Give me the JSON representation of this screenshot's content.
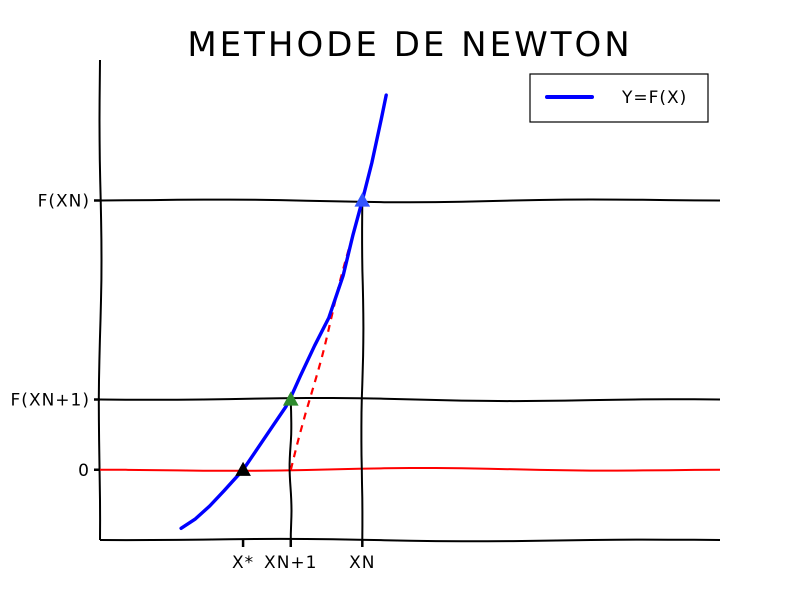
{
  "chart_data": {
    "type": "line",
    "title": "METHODE DE NEWTON",
    "xlabel": "",
    "ylabel": "",
    "xlim": [
      -0.3,
      1.0
    ],
    "ylim": [
      -0.6,
      3.5
    ],
    "grid": false,
    "legend": {
      "position": "top-right",
      "entries": [
        "Y=F(X)"
      ]
    },
    "x_ticks": [
      {
        "value": 0.0,
        "label": "X*"
      },
      {
        "value": 0.1,
        "label": "XN+1"
      },
      {
        "value": 0.25,
        "label": "XN"
      }
    ],
    "y_ticks": [
      {
        "value": 0.0,
        "label": "0"
      },
      {
        "value": 0.6,
        "label": "F(XN+1)"
      },
      {
        "value": 2.3,
        "label": "F(XN)"
      }
    ],
    "series": [
      {
        "name": "Y=F(X)",
        "color": "#0000ff",
        "style": "solid",
        "x": [
          -0.13,
          -0.1,
          -0.07,
          -0.04,
          -0.02,
          0.0,
          0.03,
          0.06,
          0.09,
          0.1,
          0.12,
          0.15,
          0.18,
          0.21,
          0.23,
          0.25,
          0.27,
          0.29,
          0.3
        ],
        "y": [
          -0.5,
          -0.42,
          -0.31,
          -0.18,
          -0.09,
          0.0,
          0.18,
          0.36,
          0.54,
          0.62,
          0.8,
          1.06,
          1.3,
          1.66,
          2.0,
          2.3,
          2.62,
          3.0,
          3.2
        ]
      }
    ],
    "reference_lines": [
      {
        "kind": "horizontal",
        "y": 0.0,
        "color": "#ff0000",
        "style": "solid"
      },
      {
        "kind": "horizontal",
        "y": 0.6,
        "color": "#000000",
        "style": "solid"
      },
      {
        "kind": "horizontal",
        "y": 2.3,
        "color": "#000000",
        "style": "solid"
      },
      {
        "kind": "vertical",
        "x": 0.1,
        "color": "#000000",
        "style": "solid"
      },
      {
        "kind": "vertical",
        "x": 0.25,
        "color": "#000000",
        "style": "solid"
      }
    ],
    "tangent": {
      "x": [
        0.1,
        0.25
      ],
      "y": [
        0.0,
        2.3
      ],
      "color": "#ff0000",
      "style": "dashed"
    },
    "markers": [
      {
        "x": 0.0,
        "y": 0.0,
        "color": "#000000",
        "shape": "triangle"
      },
      {
        "x": 0.1,
        "y": 0.6,
        "color": "#2e8b2e",
        "shape": "triangle"
      },
      {
        "x": 0.25,
        "y": 2.3,
        "color": "#3355ff",
        "shape": "triangle"
      }
    ]
  }
}
